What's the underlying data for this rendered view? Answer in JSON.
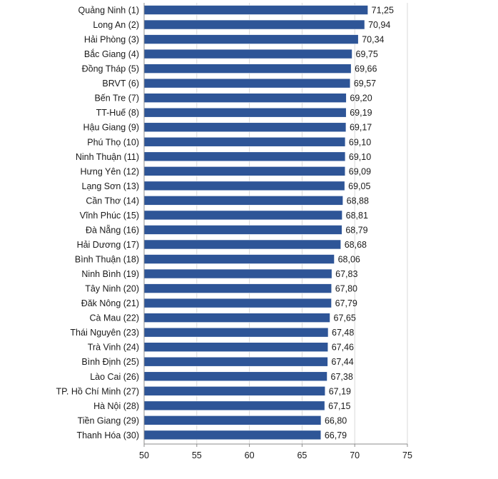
{
  "chart_data": {
    "type": "bar",
    "orientation": "horizontal",
    "categories": [
      "Quảng Ninh (1)",
      "Long An (2)",
      "Hải Phòng (3)",
      "Bắc Giang (4)",
      "Đồng Tháp (5)",
      "BRVT (6)",
      "Bến Tre (7)",
      "TT-Huế (8)",
      "Hậu Giang (9)",
      "Phú Thọ (10)",
      "Ninh Thuận (11)",
      "Hưng Yên (12)",
      "Lạng Sơn (13)",
      "Cần Thơ (14)",
      "Vĩnh Phúc (15)",
      "Đà Nẵng (16)",
      "Hải Dương (17)",
      "Bình Thuận (18)",
      "Ninh Bình (19)",
      "Tây Ninh (20)",
      "Đăk Nông (21)",
      "Cà Mau (22)",
      "Thái Nguyên (23)",
      "Trà Vinh (24)",
      "Bình Định (25)",
      "Lào Cai (26)",
      "TP. Hồ Chí Minh (27)",
      "Hà Nội (28)",
      "Tiền Giang (29)",
      "Thanh Hóa (30)"
    ],
    "values": [
      71.25,
      70.94,
      70.34,
      69.75,
      69.66,
      69.57,
      69.2,
      69.19,
      69.17,
      69.1,
      69.1,
      69.09,
      69.05,
      68.88,
      68.81,
      68.79,
      68.68,
      68.06,
      67.83,
      67.8,
      67.79,
      67.65,
      67.48,
      67.46,
      67.44,
      67.38,
      67.19,
      67.15,
      66.8,
      66.79
    ],
    "value_labels": [
      "71,25",
      "70,94",
      "70,34",
      "69,75",
      "69,66",
      "69,57",
      "69,20",
      "69,19",
      "69,17",
      "69,10",
      "69,10",
      "69,09",
      "69,05",
      "68,88",
      "68,81",
      "68,79",
      "68,68",
      "68,06",
      "67,83",
      "67,80",
      "67,79",
      "67,65",
      "67,48",
      "67,46",
      "67,44",
      "67,38",
      "67,19",
      "67,15",
      "66,80",
      "66,79"
    ],
    "xlim": [
      50,
      75
    ],
    "xticks": [
      50,
      55,
      60,
      65,
      70,
      75
    ],
    "xtick_labels": [
      "50",
      "55",
      "60",
      "65",
      "70",
      "75"
    ],
    "grid": true,
    "title": "",
    "xlabel": "",
    "ylabel": "",
    "colors": {
      "bar": "#2e5597",
      "bar_edge": "#ffffff",
      "grid": "#d9d9d9",
      "axis": "#8c8c8c"
    }
  }
}
